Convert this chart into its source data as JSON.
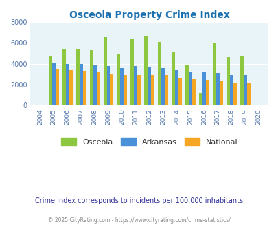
{
  "title": "Osceola Property Crime Index",
  "years": [
    2004,
    2005,
    2006,
    2007,
    2008,
    2009,
    2010,
    2011,
    2012,
    2013,
    2014,
    2015,
    2016,
    2017,
    2018,
    2019,
    2020
  ],
  "osceola": [
    0,
    4700,
    5400,
    5400,
    5350,
    6550,
    4950,
    6400,
    6600,
    6100,
    5100,
    3900,
    1200,
    6000,
    4600,
    4750,
    0
  ],
  "arkansas": [
    0,
    4050,
    4000,
    4000,
    3900,
    3800,
    3550,
    3800,
    3650,
    3600,
    3350,
    3200,
    3200,
    3100,
    2950,
    2900,
    0
  ],
  "national": [
    0,
    3450,
    3350,
    3300,
    3200,
    3050,
    2950,
    2950,
    2900,
    2900,
    2650,
    2500,
    2450,
    2350,
    2200,
    2100,
    0
  ],
  "osceola_color": "#8dc63f",
  "arkansas_color": "#4a90d9",
  "national_color": "#f5a623",
  "bg_color": "#ddeef6",
  "plot_bg_color": "#e8f4f8",
  "ylim": [
    0,
    8000
  ],
  "yticks": [
    0,
    2000,
    4000,
    6000,
    8000
  ],
  "bar_width": 0.25,
  "subtitle": "Crime Index corresponds to incidents per 100,000 inhabitants",
  "footer": "© 2025 CityRating.com - https://www.cityrating.com/crime-statistics/",
  "legend_labels": [
    "Osceola",
    "Arkansas",
    "National"
  ],
  "title_color": "#1a6faf",
  "subtitle_color": "#333399",
  "footer_color": "#888888",
  "tick_color": "#5577aa"
}
